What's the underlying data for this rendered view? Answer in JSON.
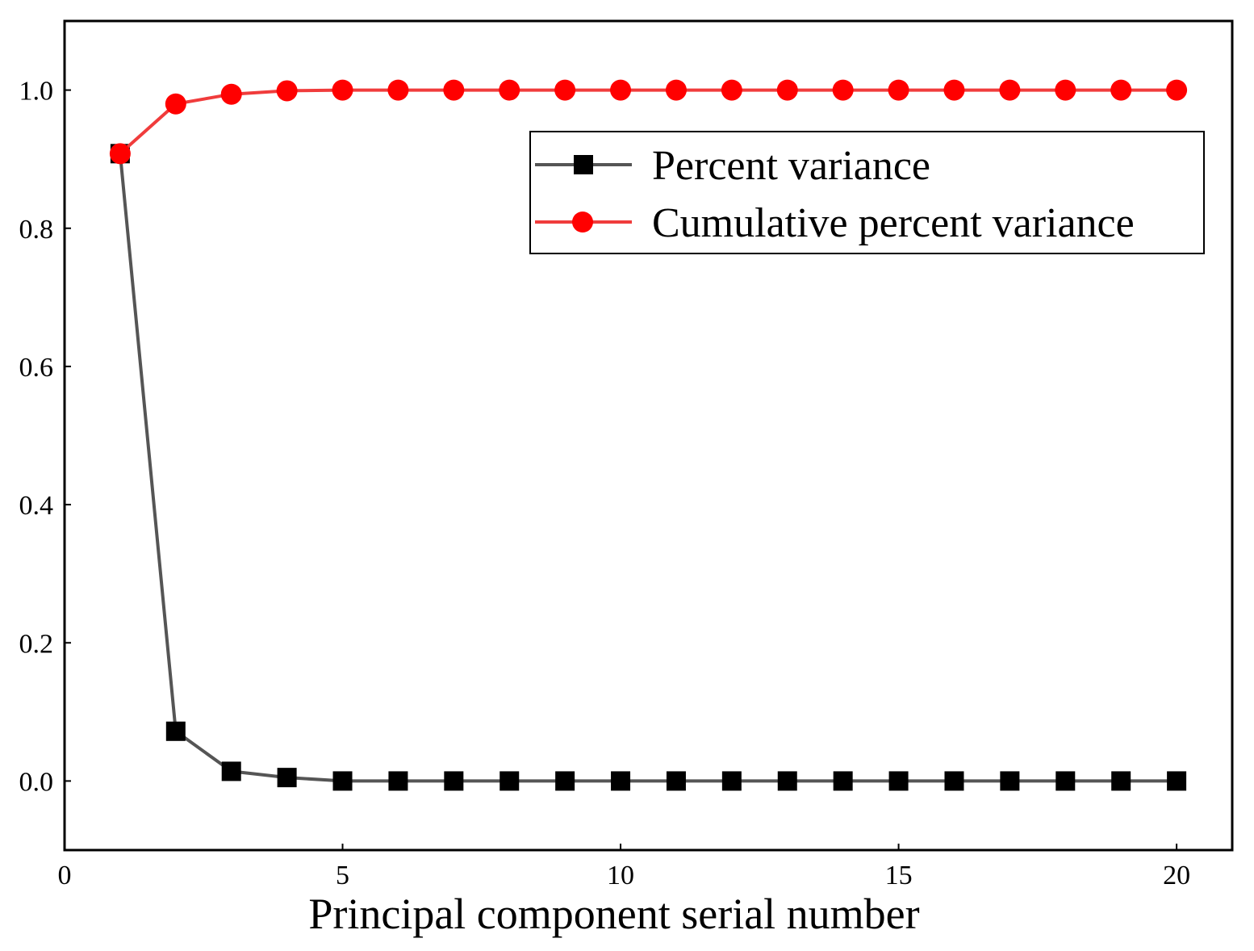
{
  "chart_data": {
    "type": "line",
    "title": "",
    "xlabel": "Principal component serial number",
    "ylabel": "",
    "xlim": [
      0,
      21
    ],
    "ylim": [
      -0.1,
      1.1
    ],
    "xticks": [
      0,
      5,
      10,
      15,
      20
    ],
    "xtick_labels": [
      "0",
      "5",
      "10",
      "15",
      "20"
    ],
    "yticks": [
      0.0,
      0.2,
      0.4,
      0.6,
      0.8,
      1.0
    ],
    "ytick_labels": [
      "0.0",
      "0.2",
      "0.4",
      "0.6",
      "0.8",
      "1.0"
    ],
    "grid": false,
    "legend_position": "top-right",
    "x": [
      1,
      2,
      3,
      4,
      5,
      6,
      7,
      8,
      9,
      10,
      11,
      12,
      13,
      14,
      15,
      16,
      17,
      18,
      19,
      20
    ],
    "series": [
      {
        "name": "Percent variance",
        "color": "#555555",
        "marker_color": "#000000",
        "marker": "square",
        "values": [
          0.908,
          0.072,
          0.014,
          0.005,
          0.0,
          0.0,
          0.0,
          0.0,
          0.0,
          0.0,
          0.0,
          0.0,
          0.0,
          0.0,
          0.0,
          0.0,
          0.0,
          0.0,
          0.0,
          0.0
        ]
      },
      {
        "name": "Cumulative percent variance",
        "color": "#f03c3c",
        "marker_color": "#ff0000",
        "marker": "circle",
        "values": [
          0.908,
          0.98,
          0.994,
          0.999,
          1.0,
          1.0,
          1.0,
          1.0,
          1.0,
          1.0,
          1.0,
          1.0,
          1.0,
          1.0,
          1.0,
          1.0,
          1.0,
          1.0,
          1.0,
          1.0
        ]
      }
    ]
  }
}
